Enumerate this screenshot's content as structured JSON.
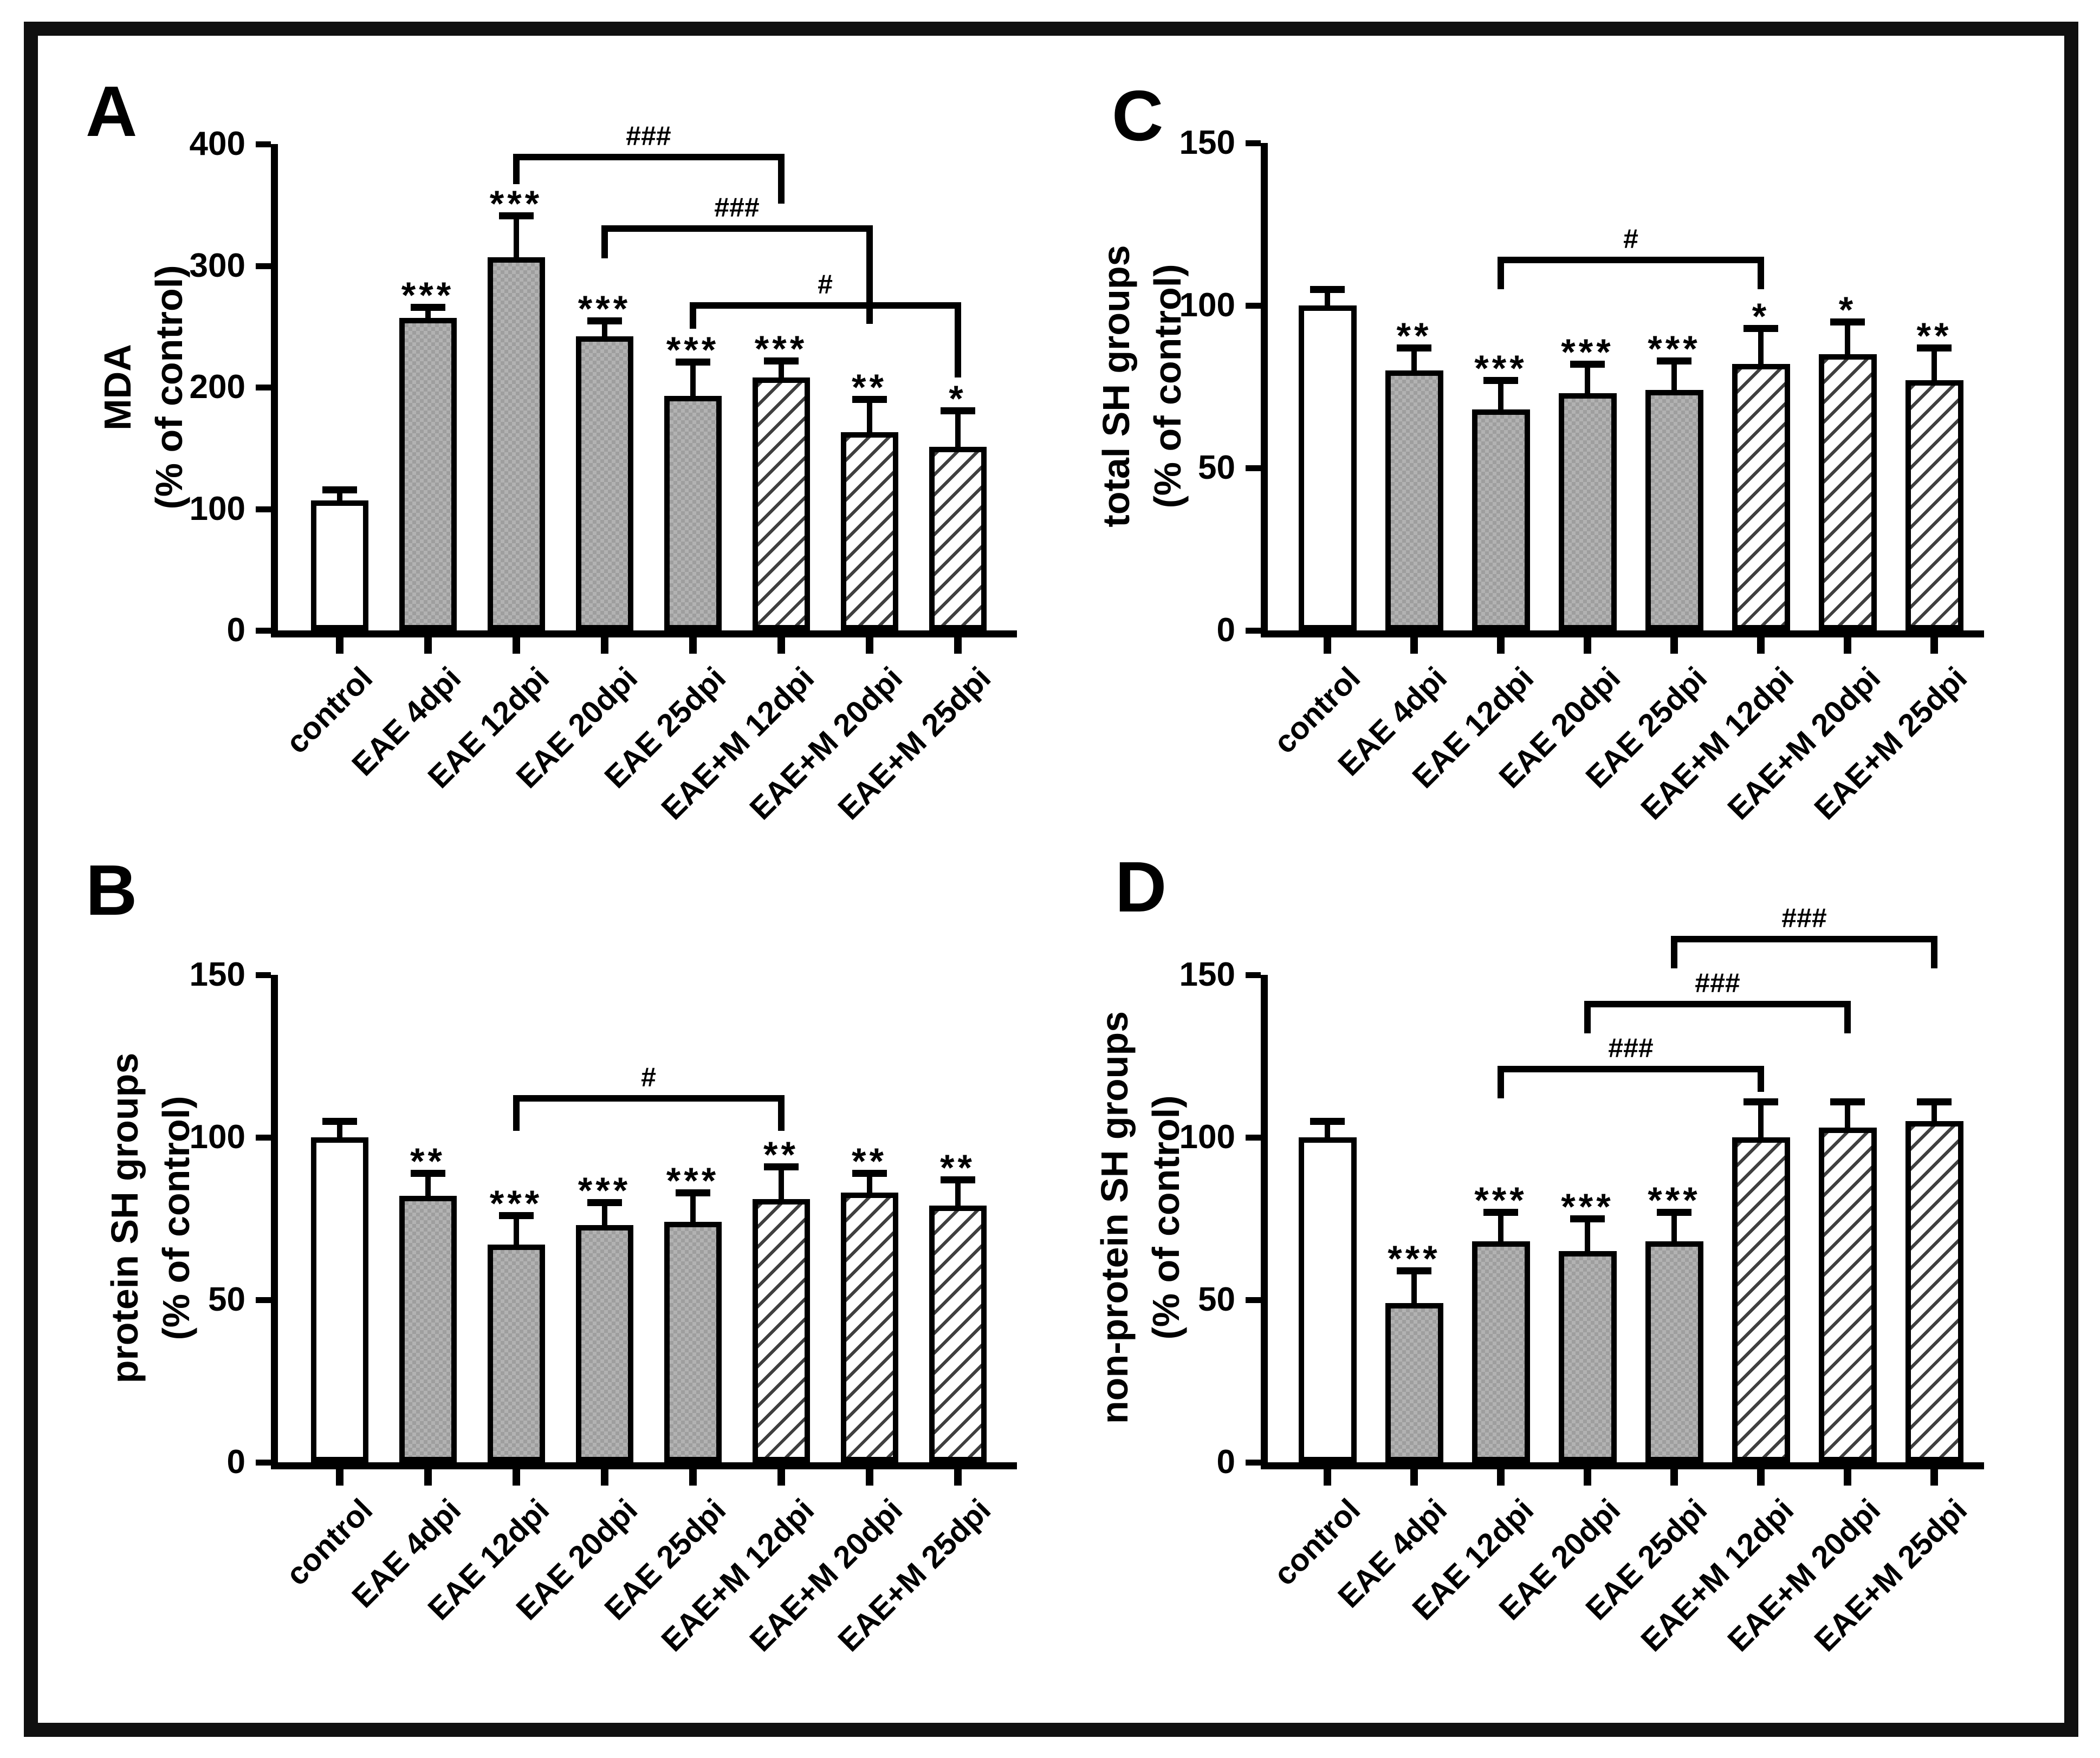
{
  "chart_data": [
    {
      "type": "bar",
      "panel": "A",
      "ylabel": [
        "MDA",
        "(% of control)"
      ],
      "ylim": [
        0,
        400
      ],
      "yticks": [
        0,
        100,
        200,
        300,
        400
      ],
      "categories": [
        "control",
        "EAE 4dpi",
        "EAE 12dpi",
        "EAE 20dpi",
        "EAE 25dpi",
        "EAE+M 12dpi",
        "EAE+M 20dpi",
        "EAE+M 25dpi"
      ],
      "values": [
        107,
        257,
        307,
        242,
        193,
        208,
        163,
        151
      ],
      "errors": [
        9,
        9,
        34,
        13,
        28,
        14,
        27,
        30
      ],
      "significance": [
        "",
        "***",
        "***",
        "***",
        "***",
        "***",
        "**",
        "*"
      ],
      "bar_styles": [
        "open",
        "shaded",
        "shaded",
        "shaded",
        "shaded",
        "hatched",
        "hatched",
        "hatched"
      ],
      "brackets": [
        {
          "from": 2,
          "to": 5,
          "label": "###",
          "top": 392,
          "left_drop": 25,
          "right_drop": 41
        },
        {
          "from": 3,
          "to": 6,
          "label": "###",
          "top": 333,
          "left_drop": 27,
          "right_drop": 81
        },
        {
          "from": 4,
          "to": 7,
          "label": "#",
          "top": 270,
          "left_drop": 22,
          "right_drop": 62
        }
      ]
    },
    {
      "type": "bar",
      "panel": "B",
      "ylabel": [
        "protein SH groups",
        "(% of control)"
      ],
      "ylim": [
        0,
        150
      ],
      "yticks": [
        0,
        50,
        100,
        150
      ],
      "categories": [
        "control",
        "EAE 4dpi",
        "EAE 12dpi",
        "EAE 20dpi",
        "EAE 25dpi",
        "EAE+M 12dpi",
        "EAE+M 20dpi",
        "EAE+M 25dpi"
      ],
      "values": [
        100,
        82,
        67,
        73,
        74,
        81,
        83,
        79
      ],
      "errors": [
        5,
        7,
        9,
        7,
        9,
        10,
        6,
        8
      ],
      "significance": [
        "",
        "**",
        "***",
        "***",
        "***",
        "**",
        "**",
        "**"
      ],
      "bar_styles": [
        "open",
        "shaded",
        "shaded",
        "shaded",
        "shaded",
        "hatched",
        "hatched",
        "hatched"
      ],
      "brackets": [
        {
          "from": 2,
          "to": 5,
          "label": "#",
          "top": 113,
          "left_drop": 11,
          "right_drop": 11
        }
      ]
    },
    {
      "type": "bar",
      "panel": "C",
      "ylabel": [
        "total SH groups",
        "(% of control)"
      ],
      "ylim": [
        0,
        150
      ],
      "yticks": [
        0,
        50,
        100,
        150
      ],
      "categories": [
        "control",
        "EAE 4dpi",
        "EAE 12dpi",
        "EAE 20dpi",
        "EAE 25dpi",
        "EAE+M 12dpi",
        "EAE+M 20dpi",
        "EAE+M 25dpi"
      ],
      "values": [
        100,
        80,
        68,
        73,
        74,
        82,
        85,
        77
      ],
      "errors": [
        5,
        7,
        9,
        9,
        9,
        11,
        10,
        10
      ],
      "significance": [
        "",
        "**",
        "***",
        "***",
        "***",
        "*",
        "*",
        "**"
      ],
      "bar_styles": [
        "open",
        "shaded",
        "shaded",
        "shaded",
        "shaded",
        "hatched",
        "hatched",
        "hatched"
      ],
      "brackets": [
        {
          "from": 2,
          "to": 5,
          "label": "#",
          "top": 115,
          "left_drop": 10,
          "right_drop": 10
        }
      ]
    },
    {
      "type": "bar",
      "panel": "D",
      "ylabel": [
        "non-protein SH groups",
        "(% of control)"
      ],
      "ylim": [
        0,
        150
      ],
      "yticks": [
        0,
        50,
        100,
        150
      ],
      "categories": [
        "control",
        "EAE 4dpi",
        "EAE 12dpi",
        "EAE 20dpi",
        "EAE 25dpi",
        "EAE+M 12dpi",
        "EAE+M 20dpi",
        "EAE+M 25dpi"
      ],
      "values": [
        100,
        49,
        68,
        65,
        68,
        100,
        103,
        105
      ],
      "errors": [
        5,
        10,
        9,
        10,
        9,
        11,
        8,
        6
      ],
      "significance": [
        "",
        "***",
        "***",
        "***",
        "***",
        "",
        "",
        ""
      ],
      "bar_styles": [
        "open",
        "shaded",
        "shaded",
        "shaded",
        "shaded",
        "hatched",
        "hatched",
        "hatched"
      ],
      "brackets": [
        {
          "from": 2,
          "to": 5,
          "label": "###",
          "top": 122,
          "left_drop": 10,
          "right_drop": 8
        },
        {
          "from": 3,
          "to": 6,
          "label": "###",
          "top": 142,
          "left_drop": 10,
          "right_drop": 10
        },
        {
          "from": 4,
          "to": 7,
          "label": "###",
          "top": 162,
          "left_drop": 10,
          "right_drop": 10
        }
      ]
    }
  ],
  "colors": {
    "open_fill": "#ffffff",
    "shaded_fill": "#a9a9a9",
    "hatch_stripe": "#3f3f3f",
    "ink": "#000000",
    "frame": "#101010",
    "background": "#ffffff"
  }
}
